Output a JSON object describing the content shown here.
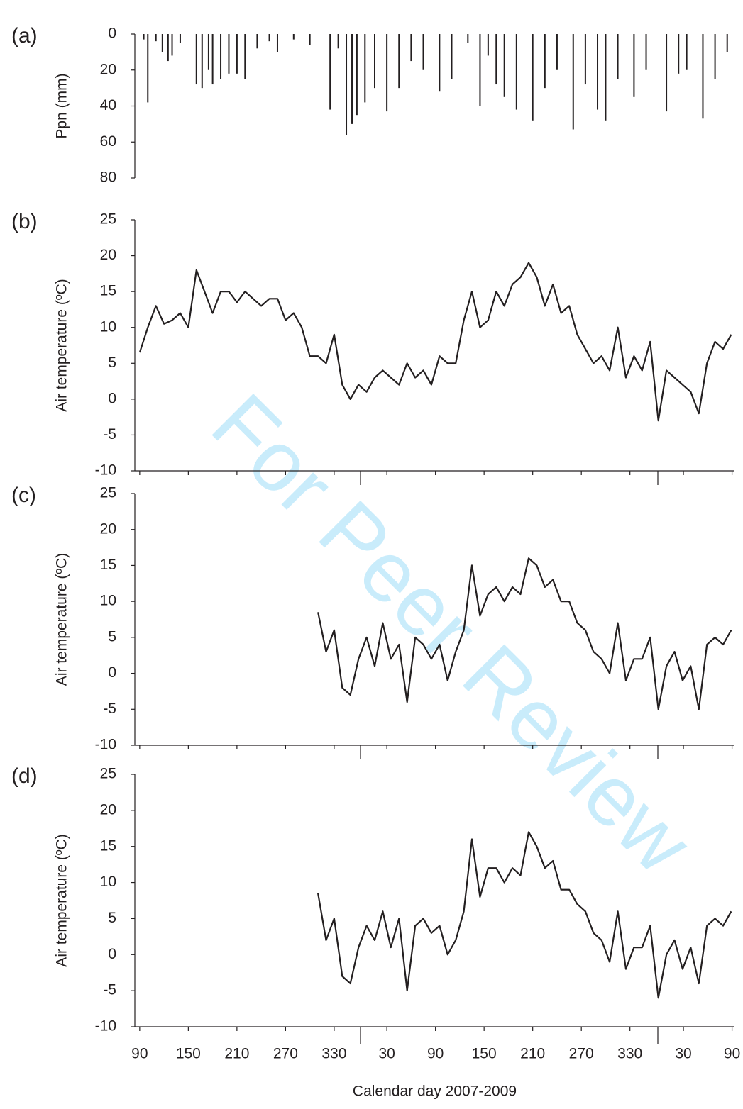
{
  "watermark": "For Peer Review",
  "chart_data": [
    {
      "type": "bar",
      "label": "(a)",
      "y_label": "Ppn (mm)",
      "color": "#231f20",
      "y_inverted": true,
      "xlim": [
        84,
        824
      ],
      "ylim": [
        0,
        80
      ],
      "yticks": [
        0,
        20,
        40,
        60,
        80
      ],
      "x": [
        95,
        100,
        110,
        118,
        125,
        130,
        140,
        160,
        167,
        175,
        180,
        190,
        200,
        210,
        220,
        235,
        250,
        260,
        280,
        300,
        325,
        335,
        345,
        352,
        358,
        368,
        380,
        395,
        410,
        425,
        440,
        460,
        475,
        495,
        510,
        520,
        530,
        540,
        555,
        575,
        590,
        605,
        625,
        640,
        655,
        665,
        680,
        700,
        715,
        740,
        755,
        765,
        785,
        800,
        815
      ],
      "values": [
        3,
        38,
        4,
        10,
        15,
        12,
        5,
        28,
        30,
        20,
        28,
        25,
        22,
        22,
        25,
        8,
        4,
        10,
        3,
        6,
        42,
        8,
        56,
        50,
        45,
        38,
        30,
        43,
        30,
        15,
        20,
        32,
        25,
        5,
        40,
        12,
        28,
        35,
        42,
        48,
        30,
        20,
        53,
        28,
        42,
        48,
        25,
        35,
        20,
        43,
        22,
        20,
        47,
        25,
        10
      ]
    },
    {
      "type": "line",
      "label": "(b)",
      "y_label": "Air temperature (ºC)",
      "color": "#231f20",
      "xlim": [
        84,
        824
      ],
      "ylim": [
        -10,
        25
      ],
      "yticks": [
        -10,
        -5,
        0,
        5,
        10,
        15,
        20,
        25
      ],
      "x": [
        90,
        100,
        110,
        120,
        130,
        140,
        150,
        160,
        170,
        180,
        190,
        200,
        210,
        220,
        230,
        240,
        250,
        260,
        270,
        280,
        290,
        300,
        310,
        320,
        330,
        340,
        350,
        360,
        370,
        380,
        390,
        400,
        410,
        420,
        430,
        440,
        450,
        460,
        470,
        480,
        490,
        500,
        510,
        520,
        530,
        540,
        550,
        560,
        570,
        580,
        590,
        600,
        610,
        620,
        630,
        640,
        650,
        660,
        670,
        680,
        690,
        700,
        710,
        720,
        730,
        740,
        750,
        760,
        770,
        780,
        790,
        800,
        810,
        820
      ],
      "values": [
        6.5,
        10,
        13,
        10.5,
        11,
        12,
        10,
        18,
        15,
        12,
        15,
        15,
        13.5,
        15,
        14,
        13,
        14,
        14,
        11,
        12,
        10,
        6,
        6,
        5,
        9,
        2,
        0,
        2,
        1,
        3,
        4,
        3,
        2,
        5,
        3,
        4,
        2,
        6,
        5,
        5,
        11,
        15,
        10,
        11,
        15,
        13,
        16,
        17,
        19,
        17,
        13,
        16,
        12,
        13,
        9,
        7,
        5,
        6,
        4,
        10,
        3,
        6,
        4,
        8,
        -3,
        4,
        3,
        2,
        1,
        -2,
        5,
        8,
        7,
        9
      ]
    },
    {
      "type": "line",
      "label": "(c)",
      "y_label": "Air temperature (ºC)",
      "color": "#231f20",
      "xlim": [
        84,
        824
      ],
      "ylim": [
        -10,
        25
      ],
      "yticks": [
        -10,
        -5,
        0,
        5,
        10,
        15,
        20,
        25
      ],
      "x": [
        310,
        320,
        330,
        340,
        350,
        360,
        370,
        380,
        390,
        400,
        410,
        420,
        430,
        440,
        450,
        460,
        470,
        480,
        490,
        500,
        510,
        520,
        530,
        540,
        550,
        560,
        570,
        580,
        590,
        600,
        610,
        620,
        630,
        640,
        650,
        660,
        670,
        680,
        690,
        700,
        710,
        720,
        730,
        740,
        750,
        760,
        770,
        780,
        790,
        800,
        810,
        820
      ],
      "values": [
        8.5,
        3,
        6,
        -2,
        -3,
        2,
        5,
        1,
        7,
        2,
        4,
        -4,
        5,
        4,
        2,
        4,
        -1,
        3,
        6,
        15,
        8,
        11,
        12,
        10,
        12,
        11,
        16,
        15,
        12,
        13,
        10,
        10,
        7,
        6,
        3,
        2,
        0,
        7,
        -1,
        2,
        2,
        5,
        -5,
        1,
        3,
        -1,
        1,
        -5,
        4,
        5,
        4,
        6
      ]
    },
    {
      "type": "line",
      "label": "(d)",
      "y_label": "Air temperature (ºC)",
      "x_label": "Calendar day 2007-2009",
      "color": "#231f20",
      "xlim": [
        84,
        824
      ],
      "ylim": [
        -10,
        25
      ],
      "yticks": [
        -10,
        -5,
        0,
        5,
        10,
        15,
        20,
        25
      ],
      "xticks": [
        90,
        150,
        210,
        270,
        330,
        {
          "value": 395,
          "label": "30"
        },
        {
          "value": 455,
          "label": "90"
        },
        {
          "value": 515,
          "label": "150"
        },
        {
          "value": 575,
          "label": "210"
        },
        {
          "value": 635,
          "label": "270"
        },
        {
          "value": 695,
          "label": "330"
        },
        {
          "value": 761,
          "label": "30"
        },
        {
          "value": 821,
          "label": "90"
        }
      ],
      "x": [
        310,
        320,
        330,
        340,
        350,
        360,
        370,
        380,
        390,
        400,
        410,
        420,
        430,
        440,
        450,
        460,
        470,
        480,
        490,
        500,
        510,
        520,
        530,
        540,
        550,
        560,
        570,
        580,
        590,
        600,
        610,
        620,
        630,
        640,
        650,
        660,
        670,
        680,
        690,
        700,
        710,
        720,
        730,
        740,
        750,
        760,
        770,
        780,
        790,
        800,
        810,
        820
      ],
      "values": [
        8.5,
        2,
        5,
        -3,
        -4,
        1,
        4,
        2,
        6,
        1,
        5,
        -5,
        4,
        5,
        3,
        4,
        0,
        2,
        6,
        16,
        8,
        12,
        12,
        10,
        12,
        11,
        17,
        15,
        12,
        13,
        9,
        9,
        7,
        6,
        3,
        2,
        -1,
        6,
        -2,
        1,
        1,
        4,
        -6,
        0,
        2,
        -2,
        1,
        -4,
        4,
        5,
        4,
        6
      ]
    }
  ]
}
